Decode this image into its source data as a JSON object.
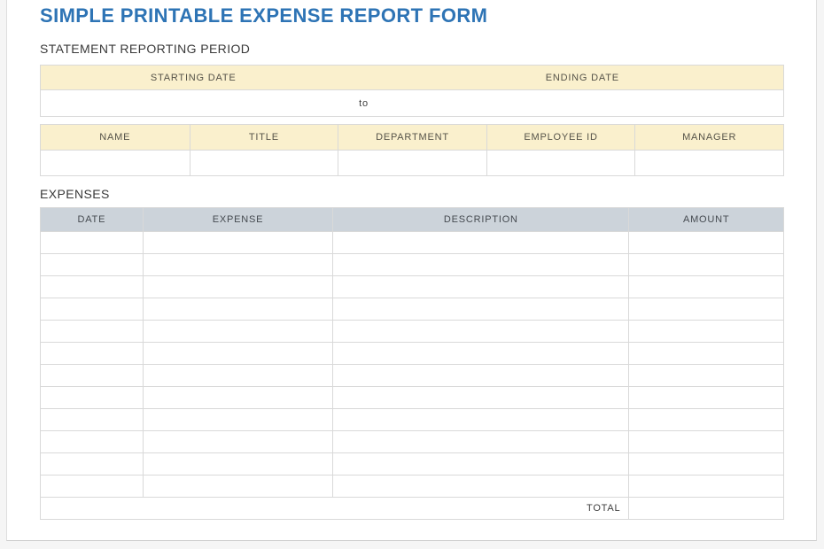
{
  "page": {
    "title": "SIMPLE PRINTABLE EXPENSE REPORT FORM"
  },
  "colors": {
    "title_blue": "#2e74b5",
    "header_cream": "#faf0cd",
    "header_gray_blue": "#ccd3da",
    "border_gray": "#d9d9d9"
  },
  "reporting_period": {
    "section_label": "STATEMENT REPORTING PERIOD",
    "starting_date_header": "STARTING DATE",
    "ending_date_header": "ENDING DATE",
    "separator_label": "to",
    "starting_date_value": "",
    "ending_date_value": ""
  },
  "employee": {
    "columns": [
      "NAME",
      "TITLE",
      "DEPARTMENT",
      "EMPLOYEE ID",
      "MANAGER"
    ],
    "values": [
      "",
      "",
      "",
      "",
      ""
    ]
  },
  "expenses": {
    "section_label": "EXPENSES",
    "columns": [
      "DATE",
      "EXPENSE",
      "DESCRIPTION",
      "AMOUNT"
    ],
    "row_count": 12,
    "total_label": "TOTAL",
    "total_value": ""
  }
}
